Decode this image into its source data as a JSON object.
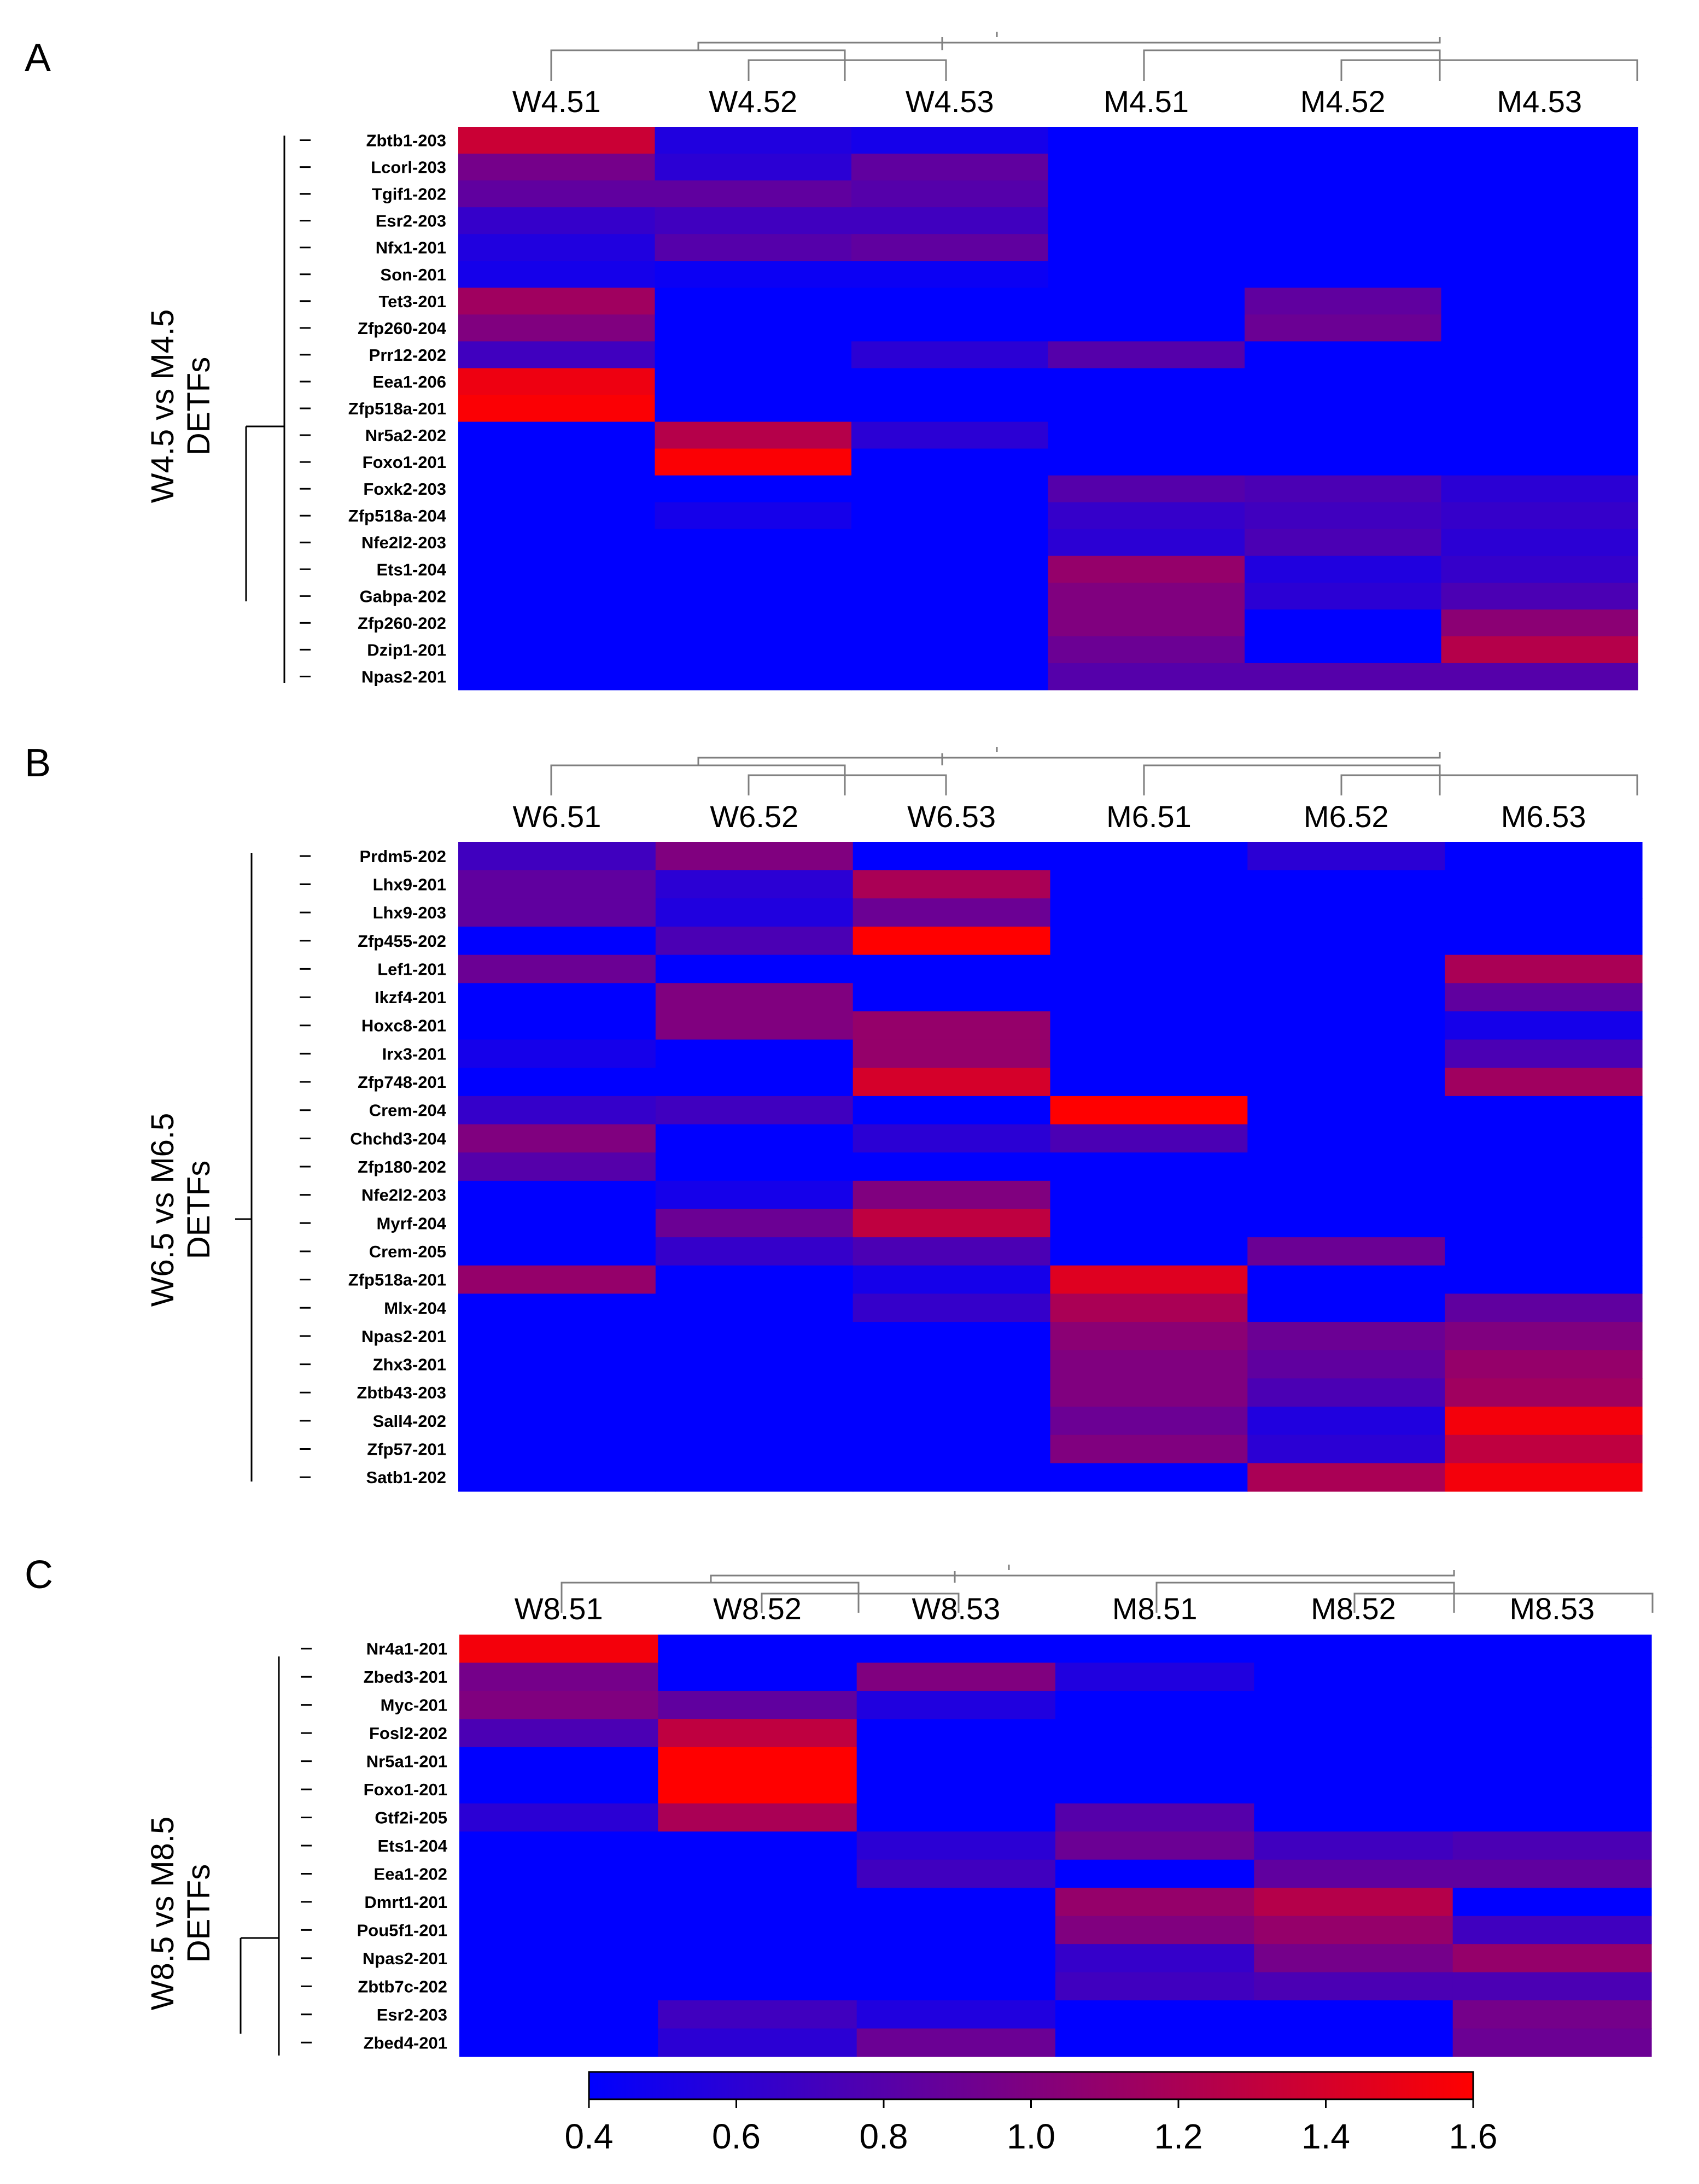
{
  "colors": {
    "low": "#0000ff",
    "mid": "#80007f",
    "high": "#ff0000"
  },
  "chart_data": [
    {
      "type": "heatmap",
      "panel_label": "A",
      "ylabel_line1": "W4.5 vs M4.5",
      "ylabel_line2": "DETFs",
      "columns": [
        "W4.51",
        "W4.52",
        "W4.53",
        "M4.51",
        "M4.52",
        "M4.53"
      ],
      "rows": [
        "Zbtb1-203",
        "Lcorl-203",
        "Tgif1-202",
        "Esr2-203",
        "Nfx1-201",
        "Son-201",
        "Tet3-201",
        "Zfp260-204",
        "Prr12-202",
        "Eea1-206",
        "Zfp518a-201",
        "Nr5a2-202",
        "Foxo1-201",
        "Foxk2-203",
        "Zfp518a-204",
        "Nfe2l2-203",
        "Ets1-204",
        "Gabpa-202",
        "Zfp260-202",
        "Dzip1-201",
        "Npas2-201"
      ],
      "values": [
        [
          1.35,
          0.55,
          0.5,
          0.4,
          0.4,
          0.4
        ],
        [
          0.95,
          0.6,
          0.85,
          0.4,
          0.4,
          0.4
        ],
        [
          0.85,
          0.85,
          0.8,
          0.4,
          0.4,
          0.4
        ],
        [
          0.65,
          0.7,
          0.7,
          0.4,
          0.4,
          0.4
        ],
        [
          0.55,
          0.8,
          0.85,
          0.4,
          0.4,
          0.4
        ],
        [
          0.5,
          0.45,
          0.45,
          0.4,
          0.4,
          0.4
        ],
        [
          1.15,
          0.4,
          0.4,
          0.4,
          0.85,
          0.4
        ],
        [
          1.0,
          0.4,
          0.4,
          0.4,
          0.9,
          0.4
        ],
        [
          0.7,
          0.4,
          0.6,
          0.8,
          0.4,
          0.4
        ],
        [
          1.52,
          0.4,
          0.4,
          0.4,
          0.4,
          0.4
        ],
        [
          1.58,
          0.4,
          0.4,
          0.4,
          0.4,
          0.4
        ],
        [
          0.4,
          1.25,
          0.6,
          0.4,
          0.4,
          0.4
        ],
        [
          0.4,
          1.58,
          0.4,
          0.4,
          0.4,
          0.4
        ],
        [
          0.4,
          0.4,
          0.4,
          0.8,
          0.75,
          0.6
        ],
        [
          0.4,
          0.5,
          0.4,
          0.65,
          0.7,
          0.65
        ],
        [
          0.4,
          0.4,
          0.4,
          0.6,
          0.75,
          0.6
        ],
        [
          0.4,
          0.4,
          0.4,
          1.1,
          0.55,
          0.65
        ],
        [
          0.4,
          0.4,
          0.4,
          1.0,
          0.6,
          0.75
        ],
        [
          0.4,
          0.4,
          0.4,
          1.0,
          0.4,
          1.05
        ],
        [
          0.4,
          0.4,
          0.4,
          0.9,
          0.4,
          1.25
        ],
        [
          0.4,
          0.4,
          0.4,
          0.8,
          0.8,
          0.8
        ]
      ]
    },
    {
      "type": "heatmap",
      "panel_label": "B",
      "ylabel_line1": "W6.5 vs M6.5",
      "ylabel_line2": "DETFs",
      "columns": [
        "W6.51",
        "W6.52",
        "W6.53",
        "M6.51",
        "M6.52",
        "M6.53"
      ],
      "rows": [
        "Prdm5-202",
        "Lhx9-201",
        "Lhx9-203",
        "Zfp455-202",
        "Lef1-201",
        "Ikzf4-201",
        "Hoxc8-201",
        "Irx3-201",
        "Zfp748-201",
        "Crem-204",
        "Chchd3-204",
        "Zfp180-202",
        "Nfe2l2-203",
        "Myrf-204",
        "Crem-205",
        "Zfp518a-201",
        "Mlx-204",
        "Npas2-201",
        "Zhx3-201",
        "Zbtb43-203",
        "Sall4-202",
        "Zfp57-201",
        "Satb1-202"
      ],
      "values": [
        [
          0.7,
          1.0,
          0.4,
          0.4,
          0.6,
          0.4
        ],
        [
          0.85,
          0.6,
          1.2,
          0.4,
          0.4,
          0.4
        ],
        [
          0.85,
          0.55,
          0.9,
          0.4,
          0.4,
          0.4
        ],
        [
          0.4,
          0.75,
          1.6,
          0.4,
          0.4,
          0.4
        ],
        [
          0.9,
          0.4,
          0.4,
          0.4,
          0.4,
          1.2
        ],
        [
          0.4,
          1.0,
          0.4,
          0.4,
          0.4,
          0.85
        ],
        [
          0.4,
          1.0,
          1.1,
          0.4,
          0.4,
          0.5
        ],
        [
          0.5,
          0.4,
          1.1,
          0.4,
          0.4,
          0.75
        ],
        [
          0.4,
          0.4,
          1.4,
          0.4,
          0.4,
          1.15
        ],
        [
          0.65,
          0.7,
          0.4,
          1.6,
          0.4,
          0.4
        ],
        [
          1.0,
          0.4,
          0.6,
          0.75,
          0.4,
          0.4
        ],
        [
          0.8,
          0.4,
          0.4,
          0.4,
          0.4,
          0.4
        ],
        [
          0.4,
          0.5,
          1.0,
          0.4,
          0.4,
          0.4
        ],
        [
          0.4,
          0.9,
          1.3,
          0.4,
          0.4,
          0.4
        ],
        [
          0.4,
          0.65,
          0.75,
          0.4,
          0.9,
          0.4
        ],
        [
          1.1,
          0.4,
          0.5,
          1.45,
          0.4,
          0.4
        ],
        [
          0.4,
          0.4,
          0.65,
          1.2,
          0.4,
          0.85
        ],
        [
          0.4,
          0.4,
          0.4,
          1.05,
          0.9,
          1.0
        ],
        [
          0.4,
          0.4,
          0.4,
          1.0,
          0.85,
          1.1
        ],
        [
          0.4,
          0.4,
          0.4,
          1.0,
          0.75,
          1.15
        ],
        [
          0.4,
          0.4,
          0.4,
          0.9,
          0.55,
          1.55
        ],
        [
          0.4,
          0.4,
          0.4,
          1.0,
          0.6,
          1.3
        ],
        [
          0.4,
          0.4,
          0.4,
          0.4,
          1.2,
          1.55
        ]
      ]
    },
    {
      "type": "heatmap",
      "panel_label": "C",
      "ylabel_line1": "W8.5 vs M8.5",
      "ylabel_line2": "DETFs",
      "columns": [
        "W8.51",
        "W8.52",
        "W8.53",
        "M8.51",
        "M8.52",
        "M8.53"
      ],
      "rows": [
        "Nr4a1-201",
        "Zbed3-201",
        "Myc-201",
        "Fosl2-202",
        "Nr5a1-201",
        "Foxo1-201",
        "Gtf2i-205",
        "Ets1-204",
        "Eea1-202",
        "Dmrt1-201",
        "Pou5f1-201",
        "Npas2-201",
        "Zbtb7c-202",
        "Esr2-203",
        "Zbed4-201"
      ],
      "values": [
        [
          1.55,
          0.4,
          0.4,
          0.4,
          0.4,
          0.4
        ],
        [
          0.95,
          0.4,
          1.0,
          0.55,
          0.4,
          0.4
        ],
        [
          1.0,
          0.85,
          0.55,
          0.4,
          0.4,
          0.4
        ],
        [
          0.75,
          1.3,
          0.4,
          0.4,
          0.4,
          0.4
        ],
        [
          0.4,
          1.6,
          0.4,
          0.4,
          0.4,
          0.4
        ],
        [
          0.4,
          1.6,
          0.4,
          0.4,
          0.4,
          0.4
        ],
        [
          0.6,
          1.2,
          0.4,
          0.8,
          0.4,
          0.4
        ],
        [
          0.4,
          0.4,
          0.6,
          0.9,
          0.7,
          0.75
        ],
        [
          0.4,
          0.4,
          0.7,
          0.4,
          0.85,
          0.85
        ],
        [
          0.4,
          0.4,
          0.4,
          1.1,
          1.25,
          0.4
        ],
        [
          0.4,
          0.4,
          0.4,
          1.0,
          1.1,
          0.7
        ],
        [
          0.4,
          0.4,
          0.4,
          0.65,
          0.95,
          1.1
        ],
        [
          0.4,
          0.4,
          0.4,
          0.7,
          0.75,
          0.75
        ],
        [
          0.4,
          0.7,
          0.55,
          0.4,
          0.4,
          0.95
        ],
        [
          0.4,
          0.6,
          0.9,
          0.4,
          0.4,
          0.9
        ]
      ]
    }
  ],
  "colorbar": {
    "min": 0.4,
    "max": 1.6,
    "ticks": [
      "0.4",
      "0.6",
      "0.8",
      "1.0",
      "1.2",
      "1.4",
      "1.6"
    ]
  }
}
